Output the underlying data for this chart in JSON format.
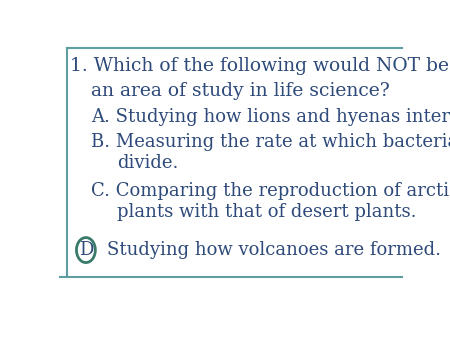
{
  "background_color": "#ffffff",
  "border_color": "#5f9ea0",
  "text_color": "#2e4a7a",
  "font_family": "serif",
  "title_line1": "1. Which of the following would NOT be",
  "title_line2": "an area of study in life science?",
  "option_A": "A. Studying how lions and hyenas interact.",
  "option_B1": "B. Measuring the rate at which bacteria",
  "option_B2": "divide.",
  "option_C1": "C. Comparing the reproduction of arctic",
  "option_C2": "plants with that of desert plants.",
  "option_D_label": "D",
  "option_D_text": "Studying how volcanoes are formed.",
  "circle_color": "#3a7a6a",
  "bottom_line_color": "#5f9ea0",
  "font_size_title": 13.5,
  "font_size_options": 13.0,
  "figsize": [
    4.5,
    3.38
  ],
  "dpi": 100
}
